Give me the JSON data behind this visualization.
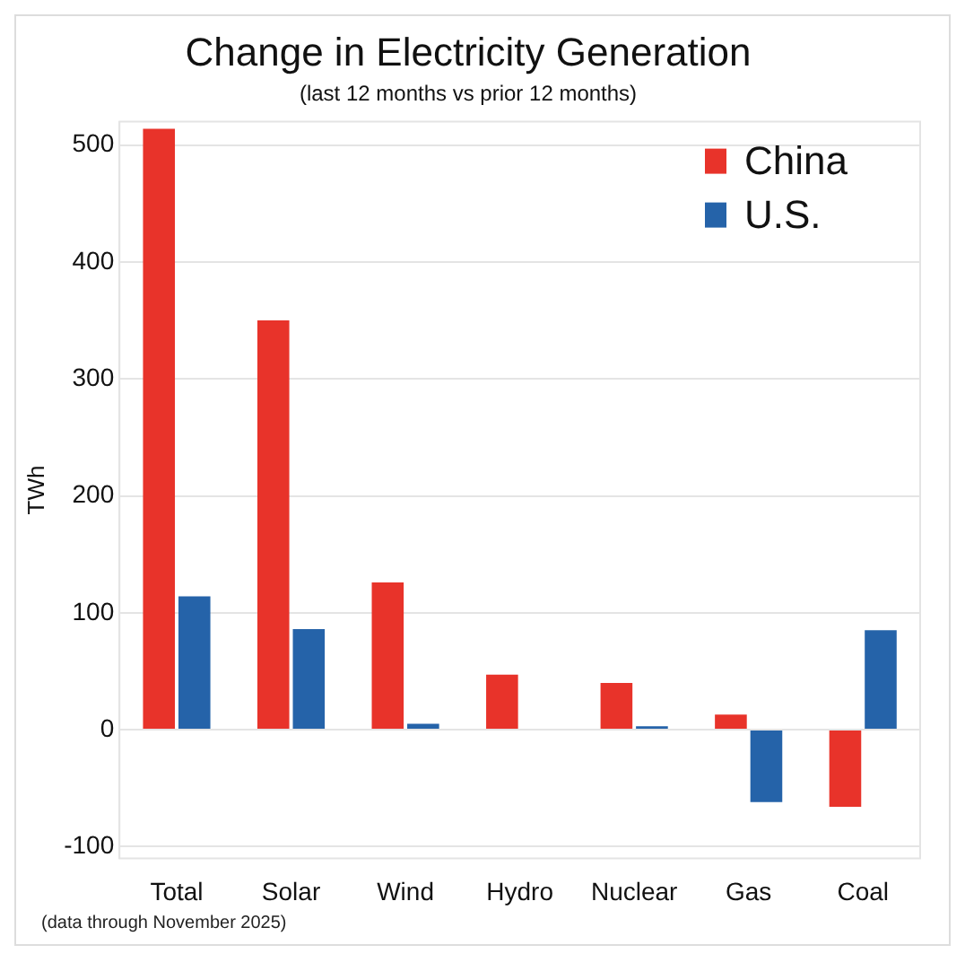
{
  "chart_data": {
    "type": "bar",
    "title": "Change in Electricity Generation",
    "subtitle": "(last 12 months vs prior 12 months)",
    "ylabel": "TWh",
    "categories": [
      "Total",
      "Solar",
      "Wind",
      "Hydro",
      "Nuclear",
      "Gas",
      "Coal"
    ],
    "series": [
      {
        "name": "China",
        "color": "#e8332a",
        "values": [
          514,
          350,
          126,
          47,
          40,
          13,
          -66
        ]
      },
      {
        "name": "U.S.",
        "color": "#2563a9",
        "values": [
          114,
          86,
          5,
          0,
          3,
          -62,
          85
        ]
      }
    ],
    "ylim": [
      -110,
      520
    ],
    "yticks": [
      -100,
      0,
      100,
      200,
      300,
      400,
      500
    ],
    "grid": "y",
    "legend": "top right",
    "annotations": [
      "(data through November 2025)"
    ]
  }
}
